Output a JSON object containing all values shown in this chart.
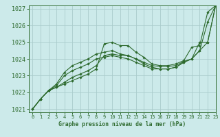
{
  "title": "Graphe pression niveau de la mer (hPa)",
  "bg_color": "#cceaea",
  "grid_color": "#aacccc",
  "line_color": "#2d6a2d",
  "xlim": [
    -0.5,
    23
  ],
  "ylim": [
    1020.8,
    1027.2
  ],
  "xticks": [
    0,
    1,
    2,
    3,
    4,
    5,
    6,
    7,
    8,
    9,
    10,
    11,
    12,
    13,
    14,
    15,
    16,
    17,
    18,
    19,
    20,
    21,
    22,
    23
  ],
  "yticks": [
    1021,
    1022,
    1023,
    1024,
    1025,
    1026,
    1027
  ],
  "series": [
    [
      1021.0,
      1021.6,
      1022.1,
      1022.3,
      1022.5,
      1022.7,
      1022.9,
      1023.1,
      1023.4,
      1024.9,
      1025.0,
      1024.8,
      1024.8,
      1024.4,
      1024.1,
      1023.7,
      1023.6,
      1023.6,
      1023.7,
      1023.9,
      1024.7,
      1024.8,
      1026.8,
      1027.2
    ],
    [
      1021.0,
      1021.6,
      1022.1,
      1022.3,
      1022.6,
      1022.9,
      1023.1,
      1023.3,
      1023.6,
      1024.2,
      1024.3,
      1024.2,
      1024.2,
      1024.0,
      1023.8,
      1023.6,
      1023.55,
      1023.55,
      1023.6,
      1023.85,
      1024.0,
      1024.5,
      1026.2,
      1027.2
    ],
    [
      1021.0,
      1021.6,
      1022.1,
      1022.4,
      1023.0,
      1023.3,
      1023.5,
      1023.7,
      1024.0,
      1024.1,
      1024.2,
      1024.1,
      1024.0,
      1023.8,
      1023.6,
      1023.4,
      1023.4,
      1023.4,
      1023.5,
      1023.8,
      1024.0,
      1024.5,
      1025.0,
      1027.2
    ],
    [
      1021.0,
      1021.6,
      1022.1,
      1022.5,
      1023.2,
      1023.6,
      1023.8,
      1024.0,
      1024.3,
      1024.4,
      1024.5,
      1024.3,
      1024.2,
      1024.0,
      1023.7,
      1023.5,
      1023.4,
      1023.4,
      1023.5,
      1023.8,
      1024.0,
      1025.0,
      1025.0,
      1027.2
    ]
  ],
  "figsize": [
    3.2,
    2.0
  ],
  "dpi": 100
}
